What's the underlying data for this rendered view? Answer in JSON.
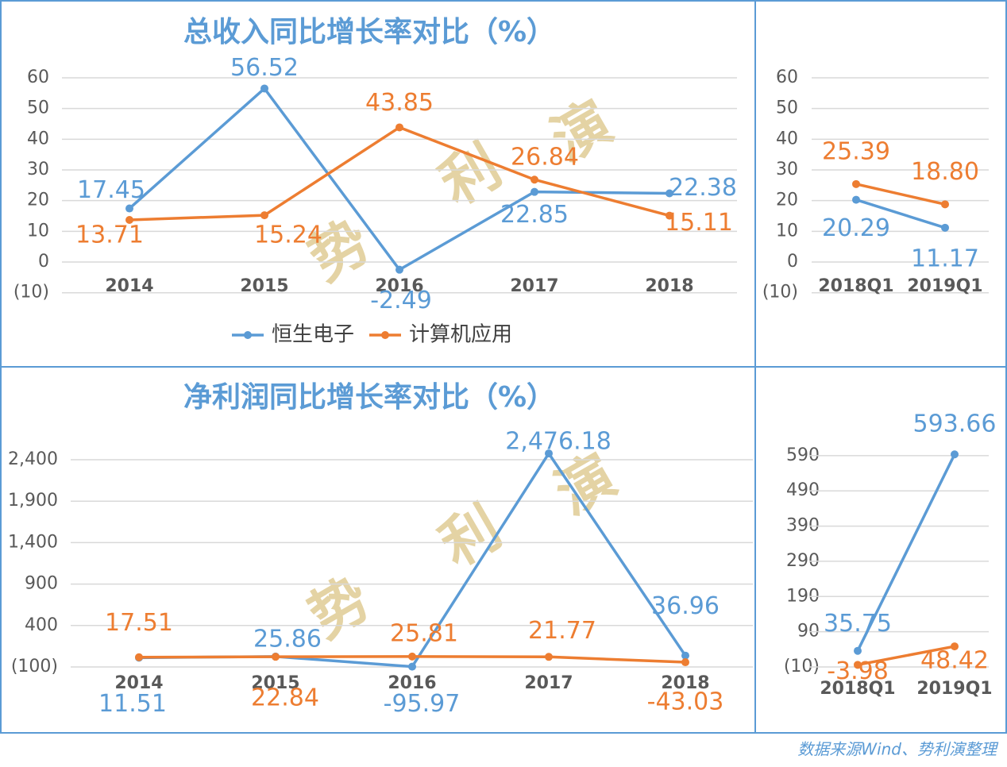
{
  "chart_data": [
    {
      "type": "line",
      "title": "总收入同比增长率对比（%）",
      "categories": [
        "2014",
        "2015",
        "2016",
        "2017",
        "2018"
      ],
      "series": [
        {
          "name": "恒生电子",
          "color": "#5b9bd5",
          "values": [
            17.45,
            56.52,
            -2.49,
            22.85,
            22.38
          ],
          "value_labels": [
            "17.45",
            "56.52",
            "-2.49",
            "22.85",
            "22.38"
          ]
        },
        {
          "name": "计算机应用",
          "color": "#ed7d31",
          "values": [
            13.71,
            15.24,
            43.85,
            26.84,
            15.11
          ],
          "value_labels": [
            "13.71",
            "15.24",
            "43.85",
            "26.84",
            "15.11"
          ]
        }
      ],
      "ylim": [
        -10,
        60
      ],
      "yticks": [
        {
          "value": -10,
          "label": "(10)"
        },
        0,
        10,
        20,
        30,
        40,
        50,
        60
      ],
      "grid": true,
      "legend": "bottom",
      "annotations": [
        "势",
        "利",
        "演"
      ]
    },
    {
      "type": "line",
      "categories": [
        "2018Q1",
        "2019Q1"
      ],
      "series": [
        {
          "name": "恒生电子",
          "color": "#5b9bd5",
          "values": [
            20.29,
            11.17
          ],
          "value_labels": [
            "20.29",
            "11.17"
          ]
        },
        {
          "name": "计算机应用",
          "color": "#ed7d31",
          "values": [
            25.39,
            18.8
          ],
          "value_labels": [
            "25.39",
            "18.80"
          ]
        }
      ],
      "ylim": [
        -10,
        60
      ],
      "yticks": [
        {
          "value": -10,
          "label": "(10)"
        },
        0,
        10,
        20,
        30,
        40,
        50,
        60
      ],
      "grid": true
    },
    {
      "type": "line",
      "title": "净利润同比增长率对比（%）",
      "categories": [
        "2014",
        "2015",
        "2016",
        "2017",
        "2018"
      ],
      "series": [
        {
          "name": "恒生电子",
          "color": "#5b9bd5",
          "values": [
            11.51,
            25.86,
            -95.97,
            2476.18,
            36.96
          ],
          "value_labels": [
            "11.51",
            "25.86",
            "-95.97",
            "2,476.18",
            "36.96"
          ]
        },
        {
          "name": "计算机应用",
          "color": "#ed7d31",
          "values": [
            17.51,
            22.84,
            25.81,
            21.77,
            -43.03
          ],
          "value_labels": [
            "17.51",
            "22.84",
            "25.81",
            "21.77",
            "-43.03"
          ]
        }
      ],
      "ylim": [
        -100,
        2500
      ],
      "yticks": [
        {
          "value": -100,
          "label": "(100)"
        },
        400,
        900,
        {
          "value": 1400,
          "label": "1,400"
        },
        {
          "value": 1900,
          "label": "1,900"
        },
        {
          "value": 2400,
          "label": "2,400"
        }
      ],
      "grid": true,
      "annotations": [
        "势",
        "利",
        "演"
      ]
    },
    {
      "type": "line",
      "categories": [
        "2018Q1",
        "2019Q1"
      ],
      "series": [
        {
          "name": "恒生电子",
          "color": "#5b9bd5",
          "values": [
            35.75,
            593.66
          ],
          "value_labels": [
            "35.75",
            "593.66"
          ]
        },
        {
          "name": "计算机应用",
          "color": "#ed7d31",
          "values": [
            -3.98,
            48.42
          ],
          "value_labels": [
            "-3.98",
            "48.42"
          ]
        }
      ],
      "ylim": [
        -10,
        610
      ],
      "yticks": [
        {
          "value": -10,
          "label": "(10)"
        },
        90,
        190,
        290,
        390,
        490,
        590
      ],
      "grid": true
    }
  ],
  "source": "数据来源Wind、势利演整理"
}
